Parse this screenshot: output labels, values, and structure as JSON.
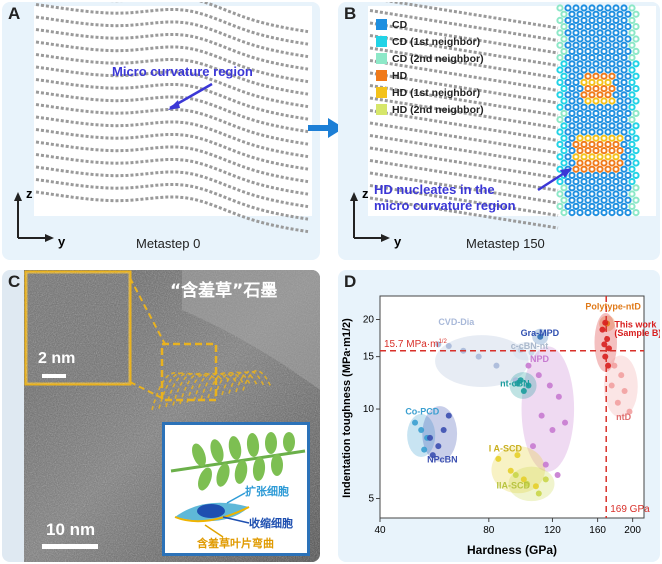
{
  "panelA": {
    "label": "A",
    "annotation": "Micro curvature region",
    "axis_z": "z",
    "axis_y": "y",
    "caption": "Metastep 0"
  },
  "panelB": {
    "label": "B",
    "legend": [
      {
        "text": "CD",
        "color": "#1e8fe0"
      },
      {
        "text": "CD (1st neighbor)",
        "color": "#22d3e6"
      },
      {
        "text": "CD (2nd neighbor)",
        "color": "#8de8c8"
      },
      {
        "text": "HD",
        "color": "#f07a1a"
      },
      {
        "text": "HD (1st neighbor)",
        "color": "#f4c21a"
      },
      {
        "text": "HD (2nd neighbor)",
        "color": "#d6e66a"
      }
    ],
    "annotation_line1": "HD nucleates in the",
    "annotation_line2": "micro curvature region",
    "axis_z": "z",
    "axis_y": "y",
    "caption": "Metastep 150"
  },
  "panelC": {
    "label": "C",
    "title": "“含羞草”石墨",
    "inset_scale": "2 nm",
    "scale": "10 nm",
    "legend_expand": "扩张细胞",
    "legend_contract": "收缩细胞",
    "legend_bend": "含羞草叶片弯曲"
  },
  "panelD": {
    "label": "D",
    "ref_line_label": "15.7 MPa·m",
    "ref_line_exp": "1/2",
    "vline_label": "169 GPa",
    "labels": [
      "CVD-Dia",
      "Gra-MPD",
      "Polytype-ntD",
      "This work",
      "(Sample B)",
      "c-cBN-nt",
      "NPD",
      "nt-cBN",
      "Co-PCD",
      "NPcBN",
      "I A-SCD",
      "IIA-SCD",
      "ntD"
    ]
  },
  "chart_data": {
    "type": "scatter",
    "xlabel": "Hardness (GPa)",
    "ylabel": "Indentation toughness (MPa·m1/2)",
    "x_scale": "log",
    "y_scale": "log",
    "xlim": [
      40,
      215
    ],
    "ylim": [
      4.3,
      24
    ],
    "xticks": [
      "40",
      "80",
      "120",
      "160",
      "200"
    ],
    "yticks": [
      "5",
      "10",
      "15",
      "20"
    ],
    "reference_lines": [
      {
        "orientation": "horizontal",
        "value": 15.7,
        "label": "15.7 MPa·m1/2"
      },
      {
        "orientation": "vertical",
        "value": 169,
        "label": "169 GPa"
      }
    ],
    "series": [
      {
        "name": "CVD-Dia",
        "color": "#a9b9d9",
        "points": [
          [
            58,
            16.5
          ],
          [
            62,
            16.3
          ],
          [
            68,
            15.7
          ],
          [
            75,
            15.0
          ],
          [
            84,
            14.0
          ],
          [
            95,
            12.5
          ]
        ]
      },
      {
        "name": "Gra-MPD",
        "color": "#2f6fb4",
        "points": [
          [
            111,
            17.5
          ]
        ]
      },
      {
        "name": "Polytype-ntD",
        "color": "#e07a1a",
        "points": [
          [
            170,
            19.4
          ]
        ]
      },
      {
        "name": "This work (Sample B)",
        "color": "#d81e1e",
        "points": [
          [
            165,
            18.5
          ],
          [
            167,
            16.5
          ],
          [
            168,
            15.0
          ],
          [
            170,
            17.2
          ],
          [
            171,
            14.0
          ],
          [
            172,
            16.0
          ],
          [
            168,
            19.5
          ]
        ]
      },
      {
        "name": "c-cBN-nt",
        "color": "#c4d4e6",
        "points": [
          [
            98,
            15.8
          ],
          [
            105,
            15.5
          ]
        ]
      },
      {
        "name": "NPD",
        "color": "#c77ad0",
        "points": [
          [
            103,
            14.0
          ],
          [
            110,
            13.0
          ],
          [
            118,
            12.0
          ],
          [
            125,
            11.0
          ],
          [
            112,
            9.5
          ],
          [
            120,
            8.5
          ],
          [
            106,
            7.5
          ],
          [
            115,
            6.5
          ],
          [
            124,
            6.0
          ],
          [
            130,
            9.0
          ]
        ]
      },
      {
        "name": "nt-cBN",
        "color": "#1a9c9c",
        "points": [
          [
            98,
            12.5
          ],
          [
            103,
            12.0
          ],
          [
            100,
            11.5
          ],
          [
            96,
            12.2
          ]
        ]
      },
      {
        "name": "Co-PCD",
        "color": "#3a9fd0",
        "points": [
          [
            50,
            9.0
          ],
          [
            52,
            8.5
          ],
          [
            54,
            8.0
          ],
          [
            53,
            7.3
          ]
        ]
      },
      {
        "name": "NPcBN",
        "color": "#3b4fb0",
        "points": [
          [
            55,
            8.0
          ],
          [
            58,
            7.5
          ],
          [
            56,
            7.0
          ],
          [
            60,
            8.5
          ],
          [
            62,
            9.5
          ]
        ]
      },
      {
        "name": "I A-SCD",
        "color": "#e6cf2a",
        "points": [
          [
            85,
            6.8
          ],
          [
            92,
            6.2
          ],
          [
            100,
            5.8
          ],
          [
            108,
            5.5
          ],
          [
            96,
            7.0
          ]
        ]
      },
      {
        "name": "IIA-SCD",
        "color": "#c9d64a",
        "points": [
          [
            95,
            6.0
          ],
          [
            102,
            5.6
          ],
          [
            110,
            5.2
          ],
          [
            115,
            5.8
          ]
        ]
      },
      {
        "name": "ntD",
        "color": "#f2a0a0",
        "points": [
          [
            175,
            12.0
          ],
          [
            182,
            10.5
          ],
          [
            190,
            11.5
          ],
          [
            196,
            9.8
          ],
          [
            186,
            13.0
          ],
          [
            178,
            14.0
          ]
        ]
      }
    ]
  }
}
